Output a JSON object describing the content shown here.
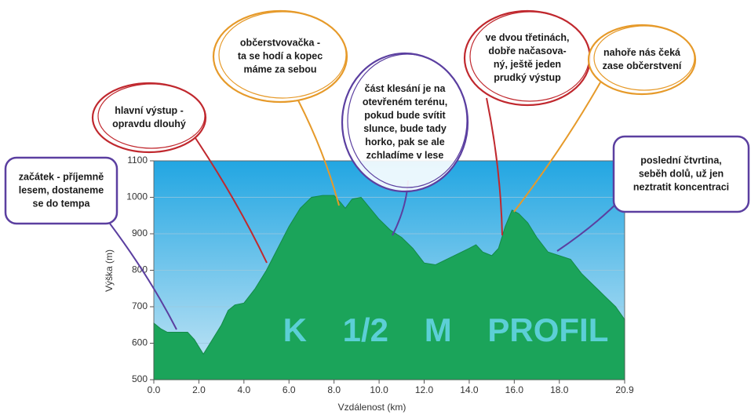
{
  "chart_data": {
    "type": "area",
    "title": "K 1/2 M PROFIL",
    "x_label": "Vzdálenost (km)",
    "y_label": "Výška (m)",
    "color": "#1ba45a",
    "x": [
      0,
      0.3,
      0.6,
      1.0,
      1.5,
      1.8,
      2.2,
      2.5,
      3.0,
      3.3,
      3.6,
      4.0,
      4.5,
      5.0,
      5.5,
      6.0,
      6.5,
      7.0,
      7.5,
      8.0,
      8.3,
      8.5,
      8.8,
      9.2,
      9.6,
      10.0,
      10.5,
      11.0,
      11.5,
      12.0,
      12.5,
      13.0,
      13.5,
      14.0,
      14.3,
      14.6,
      15.0,
      15.3,
      15.6,
      15.9,
      16.2,
      16.6,
      17.0,
      17.5,
      18.0,
      18.5,
      19.0,
      19.5,
      20.0,
      20.5,
      20.9
    ],
    "values": [
      655,
      640,
      630,
      630,
      630,
      610,
      570,
      600,
      650,
      690,
      705,
      710,
      750,
      800,
      860,
      920,
      970,
      1000,
      1005,
      1005,
      985,
      970,
      995,
      1000,
      970,
      940,
      910,
      890,
      860,
      820,
      815,
      830,
      845,
      860,
      870,
      850,
      840,
      860,
      920,
      965,
      955,
      930,
      890,
      850,
      840,
      830,
      790,
      760,
      730,
      700,
      665
    ],
    "xlim": [
      0,
      20.9
    ],
    "ylim": [
      500,
      1100
    ],
    "xticks": [
      {
        "value": 0,
        "label": "0.0"
      },
      {
        "value": 2,
        "label": "2.0"
      },
      {
        "value": 4,
        "label": "4.0"
      },
      {
        "value": 6,
        "label": "6.0"
      },
      {
        "value": 8,
        "label": "8.0"
      },
      {
        "value": 10,
        "label": "10.0"
      },
      {
        "value": 12,
        "label": "12.0"
      },
      {
        "value": 14,
        "label": "14.0"
      },
      {
        "value": 16,
        "label": "16.0"
      },
      {
        "value": 18,
        "label": "18.0"
      },
      {
        "value": 20.9,
        "label": "20.9"
      }
    ],
    "yticks": [
      500,
      600,
      700,
      800,
      900,
      1000,
      1100
    ],
    "grid": true,
    "annotations": [
      {
        "lines": [
          "začátek - příjemně",
          "lesem, dostaneme",
          "se do tempa"
        ],
        "color": "#5b3fa0"
      },
      {
        "lines": [
          "hlavní výstup -",
          "opravdu dlouhý"
        ],
        "color": "#c0282e"
      },
      {
        "lines": [
          "občerstvovačka -",
          "ta se hodí a kopec",
          "máme za sebou"
        ],
        "color": "#e69a2a"
      },
      {
        "lines": [
          "část klesání je na",
          "otevřeném terénu,",
          "pokud bude svítit",
          "slunce, bude tady",
          "horko, pak se ale",
          "zchladíme v lese"
        ],
        "color": "#5b3fa0"
      },
      {
        "lines": [
          "ve dvou třetinách,",
          "dobře načasova-",
          "ný, ještě jeden",
          "prudký výstup"
        ],
        "color": "#c0282e"
      },
      {
        "lines": [
          "nahoře nás čeká",
          "zase občerstvení"
        ],
        "color": "#e69a2a"
      },
      {
        "lines": [
          "poslední čtvrtina,",
          "seběh dolů, už jen",
          "neztratit koncentraci"
        ],
        "color": "#5b3fa0"
      }
    ]
  }
}
